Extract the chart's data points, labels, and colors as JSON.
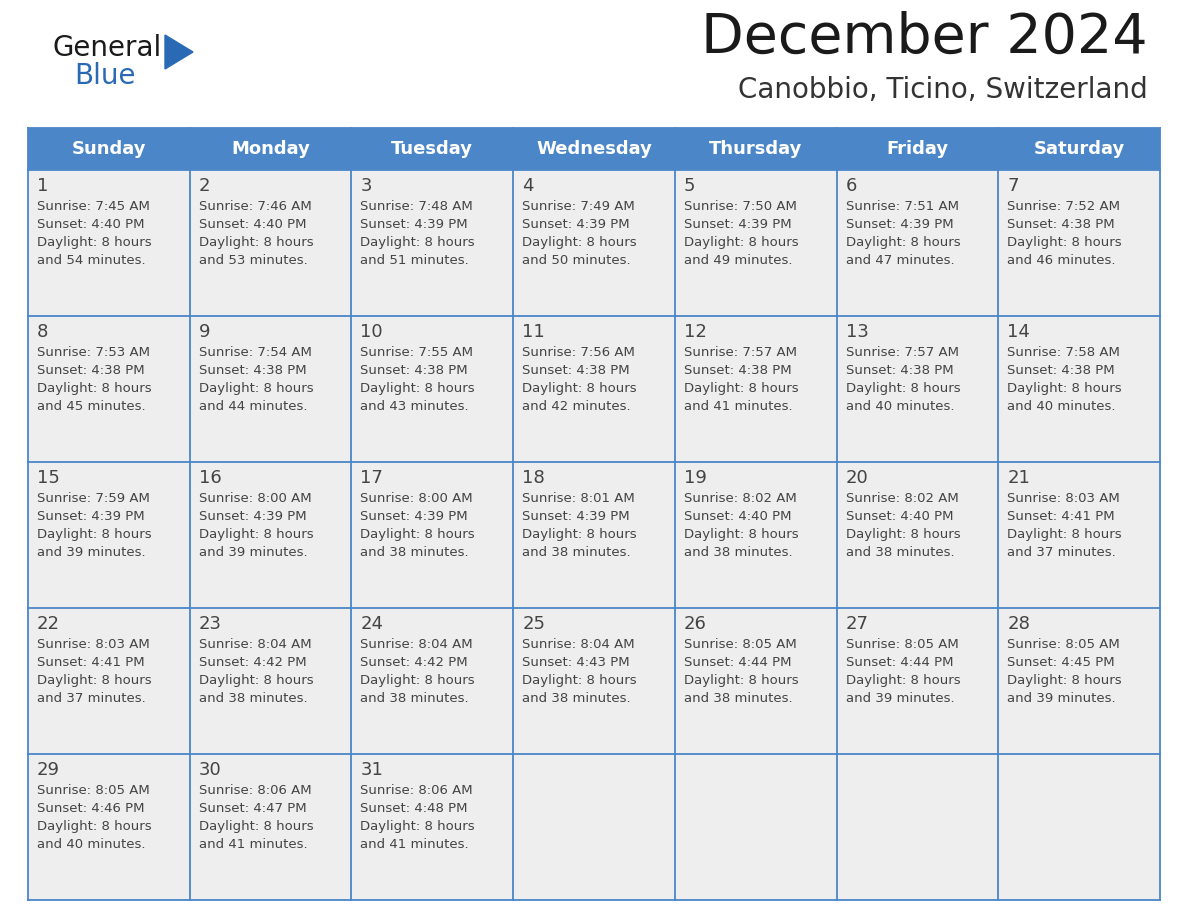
{
  "title": "December 2024",
  "subtitle": "Canobbio, Ticino, Switzerland",
  "header_color": "#4a86c8",
  "header_text_color": "#ffffff",
  "cell_bg": "#eeeeee",
  "border_color": "#4a86c8",
  "day_names": [
    "Sunday",
    "Monday",
    "Tuesday",
    "Wednesday",
    "Thursday",
    "Friday",
    "Saturday"
  ],
  "title_color": "#1a1a1a",
  "subtitle_color": "#333333",
  "day_num_color": "#444444",
  "cell_text_color": "#444444",
  "logo_general_color": "#1a1a1a",
  "logo_blue_color": "#2a6ab5",
  "weeks": [
    [
      {
        "day": 1,
        "sunrise": "7:45 AM",
        "sunset": "4:40 PM",
        "daylight_h": "8 hours",
        "daylight_m": "54 minutes"
      },
      {
        "day": 2,
        "sunrise": "7:46 AM",
        "sunset": "4:40 PM",
        "daylight_h": "8 hours",
        "daylight_m": "53 minutes"
      },
      {
        "day": 3,
        "sunrise": "7:48 AM",
        "sunset": "4:39 PM",
        "daylight_h": "8 hours",
        "daylight_m": "51 minutes"
      },
      {
        "day": 4,
        "sunrise": "7:49 AM",
        "sunset": "4:39 PM",
        "daylight_h": "8 hours",
        "daylight_m": "50 minutes"
      },
      {
        "day": 5,
        "sunrise": "7:50 AM",
        "sunset": "4:39 PM",
        "daylight_h": "8 hours",
        "daylight_m": "49 minutes"
      },
      {
        "day": 6,
        "sunrise": "7:51 AM",
        "sunset": "4:39 PM",
        "daylight_h": "8 hours",
        "daylight_m": "47 minutes"
      },
      {
        "day": 7,
        "sunrise": "7:52 AM",
        "sunset": "4:38 PM",
        "daylight_h": "8 hours",
        "daylight_m": "46 minutes"
      }
    ],
    [
      {
        "day": 8,
        "sunrise": "7:53 AM",
        "sunset": "4:38 PM",
        "daylight_h": "8 hours",
        "daylight_m": "45 minutes"
      },
      {
        "day": 9,
        "sunrise": "7:54 AM",
        "sunset": "4:38 PM",
        "daylight_h": "8 hours",
        "daylight_m": "44 minutes"
      },
      {
        "day": 10,
        "sunrise": "7:55 AM",
        "sunset": "4:38 PM",
        "daylight_h": "8 hours",
        "daylight_m": "43 minutes"
      },
      {
        "day": 11,
        "sunrise": "7:56 AM",
        "sunset": "4:38 PM",
        "daylight_h": "8 hours",
        "daylight_m": "42 minutes"
      },
      {
        "day": 12,
        "sunrise": "7:57 AM",
        "sunset": "4:38 PM",
        "daylight_h": "8 hours",
        "daylight_m": "41 minutes"
      },
      {
        "day": 13,
        "sunrise": "7:57 AM",
        "sunset": "4:38 PM",
        "daylight_h": "8 hours",
        "daylight_m": "40 minutes"
      },
      {
        "day": 14,
        "sunrise": "7:58 AM",
        "sunset": "4:38 PM",
        "daylight_h": "8 hours",
        "daylight_m": "40 minutes"
      }
    ],
    [
      {
        "day": 15,
        "sunrise": "7:59 AM",
        "sunset": "4:39 PM",
        "daylight_h": "8 hours",
        "daylight_m": "39 minutes"
      },
      {
        "day": 16,
        "sunrise": "8:00 AM",
        "sunset": "4:39 PM",
        "daylight_h": "8 hours",
        "daylight_m": "39 minutes"
      },
      {
        "day": 17,
        "sunrise": "8:00 AM",
        "sunset": "4:39 PM",
        "daylight_h": "8 hours",
        "daylight_m": "38 minutes"
      },
      {
        "day": 18,
        "sunrise": "8:01 AM",
        "sunset": "4:39 PM",
        "daylight_h": "8 hours",
        "daylight_m": "38 minutes"
      },
      {
        "day": 19,
        "sunrise": "8:02 AM",
        "sunset": "4:40 PM",
        "daylight_h": "8 hours",
        "daylight_m": "38 minutes"
      },
      {
        "day": 20,
        "sunrise": "8:02 AM",
        "sunset": "4:40 PM",
        "daylight_h": "8 hours",
        "daylight_m": "38 minutes"
      },
      {
        "day": 21,
        "sunrise": "8:03 AM",
        "sunset": "4:41 PM",
        "daylight_h": "8 hours",
        "daylight_m": "37 minutes"
      }
    ],
    [
      {
        "day": 22,
        "sunrise": "8:03 AM",
        "sunset": "4:41 PM",
        "daylight_h": "8 hours",
        "daylight_m": "37 minutes"
      },
      {
        "day": 23,
        "sunrise": "8:04 AM",
        "sunset": "4:42 PM",
        "daylight_h": "8 hours",
        "daylight_m": "38 minutes"
      },
      {
        "day": 24,
        "sunrise": "8:04 AM",
        "sunset": "4:42 PM",
        "daylight_h": "8 hours",
        "daylight_m": "38 minutes"
      },
      {
        "day": 25,
        "sunrise": "8:04 AM",
        "sunset": "4:43 PM",
        "daylight_h": "8 hours",
        "daylight_m": "38 minutes"
      },
      {
        "day": 26,
        "sunrise": "8:05 AM",
        "sunset": "4:44 PM",
        "daylight_h": "8 hours",
        "daylight_m": "38 minutes"
      },
      {
        "day": 27,
        "sunrise": "8:05 AM",
        "sunset": "4:44 PM",
        "daylight_h": "8 hours",
        "daylight_m": "39 minutes"
      },
      {
        "day": 28,
        "sunrise": "8:05 AM",
        "sunset": "4:45 PM",
        "daylight_h": "8 hours",
        "daylight_m": "39 minutes"
      }
    ],
    [
      {
        "day": 29,
        "sunrise": "8:05 AM",
        "sunset": "4:46 PM",
        "daylight_h": "8 hours",
        "daylight_m": "40 minutes"
      },
      {
        "day": 30,
        "sunrise": "8:06 AM",
        "sunset": "4:47 PM",
        "daylight_h": "8 hours",
        "daylight_m": "41 minutes"
      },
      {
        "day": 31,
        "sunrise": "8:06 AM",
        "sunset": "4:48 PM",
        "daylight_h": "8 hours",
        "daylight_m": "41 minutes"
      },
      null,
      null,
      null,
      null
    ]
  ]
}
